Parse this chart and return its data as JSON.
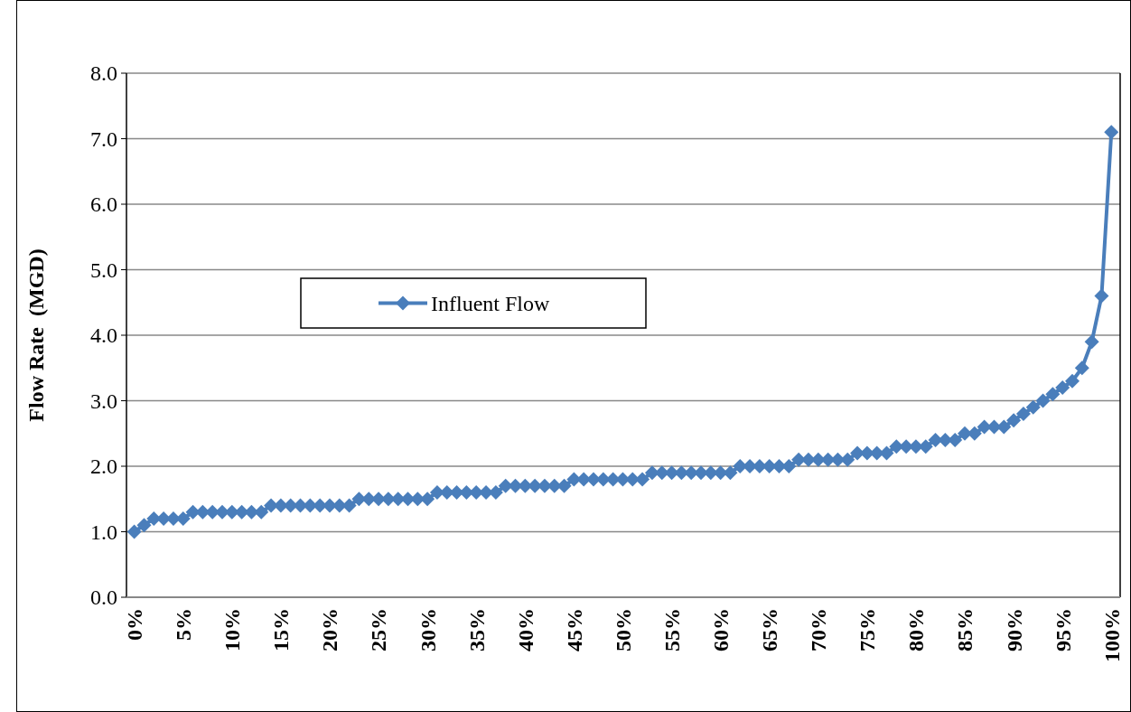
{
  "chart_data": {
    "type": "line",
    "ylabel": "Flow Rate  (MGD)",
    "x": [
      0,
      1,
      2,
      3,
      4,
      5,
      6,
      7,
      8,
      9,
      10,
      11,
      12,
      13,
      14,
      15,
      16,
      17,
      18,
      19,
      20,
      21,
      22,
      23,
      24,
      25,
      26,
      27,
      28,
      29,
      30,
      31,
      32,
      33,
      34,
      35,
      36,
      37,
      38,
      39,
      40,
      41,
      42,
      43,
      44,
      45,
      46,
      47,
      48,
      49,
      50,
      51,
      52,
      53,
      54,
      55,
      56,
      57,
      58,
      59,
      60,
      61,
      62,
      63,
      64,
      65,
      66,
      67,
      68,
      69,
      70,
      71,
      72,
      73,
      74,
      75,
      76,
      77,
      78,
      79,
      80,
      81,
      82,
      83,
      84,
      85,
      86,
      87,
      88,
      89,
      90,
      91,
      92,
      93,
      94,
      95,
      96,
      97,
      98,
      99,
      100
    ],
    "series": [
      {
        "name": "Influent Flow",
        "color": "#4a7ebb",
        "values": [
          1.0,
          1.1,
          1.2,
          1.2,
          1.2,
          1.2,
          1.3,
          1.3,
          1.3,
          1.3,
          1.3,
          1.3,
          1.3,
          1.3,
          1.4,
          1.4,
          1.4,
          1.4,
          1.4,
          1.4,
          1.4,
          1.4,
          1.4,
          1.5,
          1.5,
          1.5,
          1.5,
          1.5,
          1.5,
          1.5,
          1.5,
          1.6,
          1.6,
          1.6,
          1.6,
          1.6,
          1.6,
          1.6,
          1.7,
          1.7,
          1.7,
          1.7,
          1.7,
          1.7,
          1.7,
          1.8,
          1.8,
          1.8,
          1.8,
          1.8,
          1.8,
          1.8,
          1.8,
          1.9,
          1.9,
          1.9,
          1.9,
          1.9,
          1.9,
          1.9,
          1.9,
          1.9,
          2.0,
          2.0,
          2.0,
          2.0,
          2.0,
          2.0,
          2.1,
          2.1,
          2.1,
          2.1,
          2.1,
          2.1,
          2.2,
          2.2,
          2.2,
          2.2,
          2.3,
          2.3,
          2.3,
          2.3,
          2.4,
          2.4,
          2.4,
          2.5,
          2.5,
          2.6,
          2.6,
          2.6,
          2.7,
          2.8,
          2.9,
          3.0,
          3.1,
          3.2,
          3.3,
          3.5,
          3.9,
          4.6,
          7.1
        ]
      }
    ],
    "xlim": [
      -0.8,
      100.9
    ],
    "xticks": [
      {
        "value": 0,
        "label": "0%"
      },
      {
        "value": 5,
        "label": "5%"
      },
      {
        "value": 10,
        "label": "10%"
      },
      {
        "value": 15,
        "label": "15%"
      },
      {
        "value": 20,
        "label": "20%"
      },
      {
        "value": 25,
        "label": "25%"
      },
      {
        "value": 30,
        "label": "30%"
      },
      {
        "value": 35,
        "label": "35%"
      },
      {
        "value": 40,
        "label": "40%"
      },
      {
        "value": 45,
        "label": "45%"
      },
      {
        "value": 50,
        "label": "50%"
      },
      {
        "value": 55,
        "label": "55%"
      },
      {
        "value": 60,
        "label": "60%"
      },
      {
        "value": 65,
        "label": "65%"
      },
      {
        "value": 70,
        "label": "70%"
      },
      {
        "value": 75,
        "label": "75%"
      },
      {
        "value": 80,
        "label": "80%"
      },
      {
        "value": 85,
        "label": "85%"
      },
      {
        "value": 90,
        "label": "90%"
      },
      {
        "value": 95,
        "label": "95%"
      },
      {
        "value": 100,
        "label": "100%"
      }
    ],
    "ylim": [
      0,
      8
    ],
    "yticks": [
      {
        "value": 0,
        "label": "0.0"
      },
      {
        "value": 1,
        "label": "1.0"
      },
      {
        "value": 2,
        "label": "2.0"
      },
      {
        "value": 3,
        "label": "3.0"
      },
      {
        "value": 4,
        "label": "4.0"
      },
      {
        "value": 5,
        "label": "5.0"
      },
      {
        "value": 6,
        "label": "6.0"
      },
      {
        "value": 7,
        "label": "7.0"
      },
      {
        "value": 8,
        "label": "8.0"
      }
    ],
    "grid": "y",
    "legend": "center",
    "marker": "diamond",
    "line_style": "solid"
  }
}
